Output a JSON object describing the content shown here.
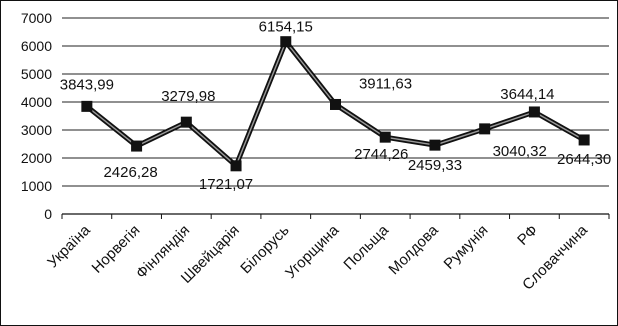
{
  "chart_data": {
    "type": "line",
    "title": "",
    "xlabel": "",
    "ylabel": "",
    "ylim": [
      0,
      7000
    ],
    "yticks": [
      "0",
      "1000",
      "2000",
      "3000",
      "4000",
      "5000",
      "6000",
      "7000"
    ],
    "grid": true,
    "legend": "none",
    "categories": [
      "Україна",
      "Норвегія",
      "Фінляндія",
      "Швейцарія",
      "Білорусь",
      "Угорщина",
      "Польща",
      "Молдова",
      "Румунія",
      "РФ",
      "Словаччина"
    ],
    "series": [
      {
        "values": [
          3843.99,
          2426.28,
          3279.98,
          1721.07,
          6154.15,
          3911.63,
          2744.26,
          2459.33,
          3040.32,
          3644.14,
          2644.3
        ],
        "labels": [
          "3843,99",
          "2426,28",
          "3279,98",
          "1721,07",
          "6154,15",
          "3911,63",
          "2744,26",
          "2459,33",
          "3040,32",
          "3644,14",
          "2644,30"
        ],
        "color": "#1a1a1a"
      }
    ]
  }
}
